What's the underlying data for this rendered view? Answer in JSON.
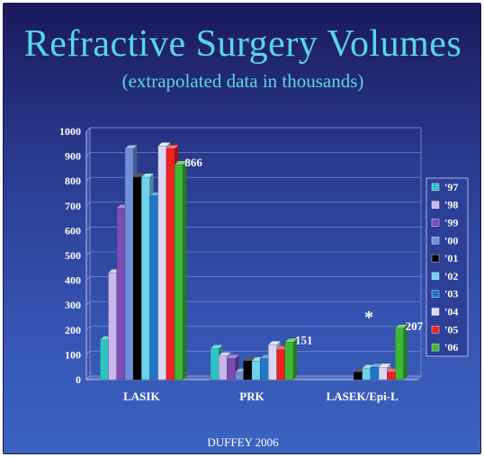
{
  "title": "Refractive Surgery Volumes",
  "subtitle": "(extrapolated data in thousands)",
  "credit": "DUFFEY 2006",
  "asterisk": "*",
  "chart_data": {
    "type": "bar",
    "title": "Refractive Surgery Volumes",
    "subtitle": "(extrapolated data in thousands)",
    "xlabel": "",
    "ylabel": "",
    "ylim": [
      0,
      1000
    ],
    "yticks": [
      0,
      100,
      200,
      300,
      400,
      500,
      600,
      700,
      800,
      900,
      1000
    ],
    "grid": true,
    "legend_position": "right",
    "categories": [
      "LASIK",
      "PRK",
      "LASEK/Epi-L"
    ],
    "series": [
      {
        "name": "'97",
        "color": "#2ec4c4",
        "values": [
          160,
          125,
          0
        ]
      },
      {
        "name": "'98",
        "color": "#c8b8ec",
        "values": [
          430,
          95,
          0
        ]
      },
      {
        "name": "'99",
        "color": "#7a4cb4",
        "values": [
          690,
          85,
          0
        ]
      },
      {
        "name": "'00",
        "color": "#6f8fd8",
        "values": [
          930,
          30,
          0
        ]
      },
      {
        "name": "'01",
        "color": "#000000",
        "values": [
          815,
          75,
          30
        ]
      },
      {
        "name": "'02",
        "color": "#6cd3ea",
        "values": [
          815,
          75,
          45
        ]
      },
      {
        "name": "'03",
        "color": "#2176c8",
        "values": [
          740,
          85,
          50
        ]
      },
      {
        "name": "'04",
        "color": "#d8d8f4",
        "values": [
          940,
          140,
          50
        ]
      },
      {
        "name": "'05",
        "color": "#ee2222",
        "values": [
          930,
          120,
          30
        ]
      },
      {
        "name": "'06",
        "color": "#3cb836",
        "values": [
          866,
          151,
          207
        ]
      }
    ],
    "data_labels": [
      {
        "series": "'06",
        "category": "LASIK",
        "text": "866"
      },
      {
        "series": "'06",
        "category": "PRK",
        "text": "151"
      },
      {
        "series": "'06",
        "category": "LASEK/Epi-L",
        "text": "207"
      }
    ]
  }
}
